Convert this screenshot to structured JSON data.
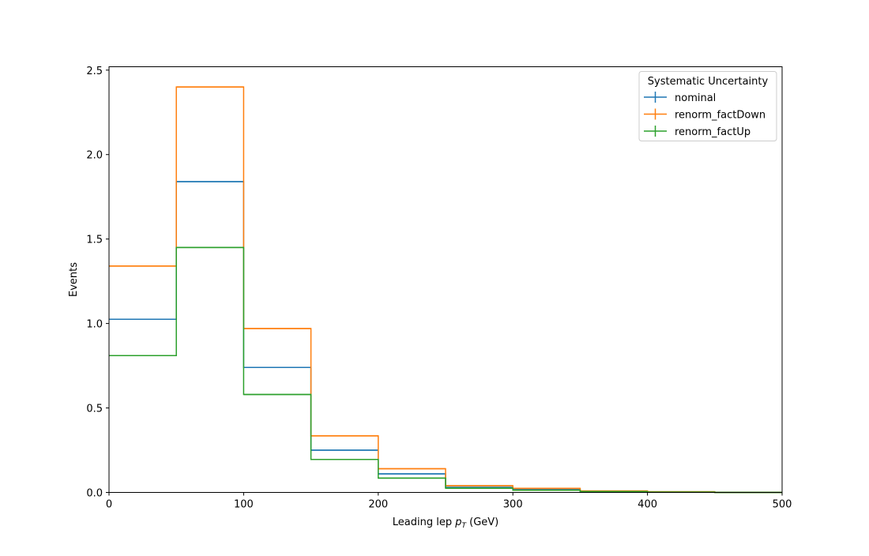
{
  "chart_data": {
    "type": "histogram",
    "xlabel_prefix": "Leading lep",
    "xlabel_symbol": "p",
    "xlabel_subscript": "T",
    "xlabel_suffix": "(GeV)",
    "ylabel": "Events",
    "xlim": [
      0,
      500
    ],
    "ylim": [
      0,
      2.52
    ],
    "xticks": [
      0,
      100,
      200,
      300,
      400,
      500
    ],
    "xtick_labels": [
      "0",
      "100",
      "200",
      "300",
      "400",
      "500"
    ],
    "yticks": [
      0.0,
      0.5,
      1.0,
      1.5,
      2.0,
      2.5
    ],
    "ytick_labels": [
      "0.0",
      "0.5",
      "1.0",
      "1.5",
      "2.0",
      "2.5"
    ],
    "bin_edges": [
      0,
      50,
      100,
      150,
      200,
      250,
      300,
      350,
      400,
      450,
      500
    ],
    "grid": false,
    "legend": {
      "title": "Systematic Uncertainty",
      "placement": "top-right"
    },
    "series": [
      {
        "name": "nominal",
        "color": "#1f77b4",
        "values": [
          1.025,
          1.84,
          0.74,
          0.25,
          0.11,
          0.03,
          0.017,
          0.006,
          0.003,
          0.0
        ]
      },
      {
        "name": "renorm_factDown",
        "color": "#ff7f0e",
        "values": [
          1.34,
          2.4,
          0.97,
          0.335,
          0.14,
          0.04,
          0.024,
          0.009,
          0.004,
          0.0
        ]
      },
      {
        "name": "renorm_factUp",
        "color": "#2ca02c",
        "values": [
          0.81,
          1.45,
          0.58,
          0.195,
          0.085,
          0.025,
          0.013,
          0.005,
          0.002,
          0.0
        ]
      }
    ]
  }
}
